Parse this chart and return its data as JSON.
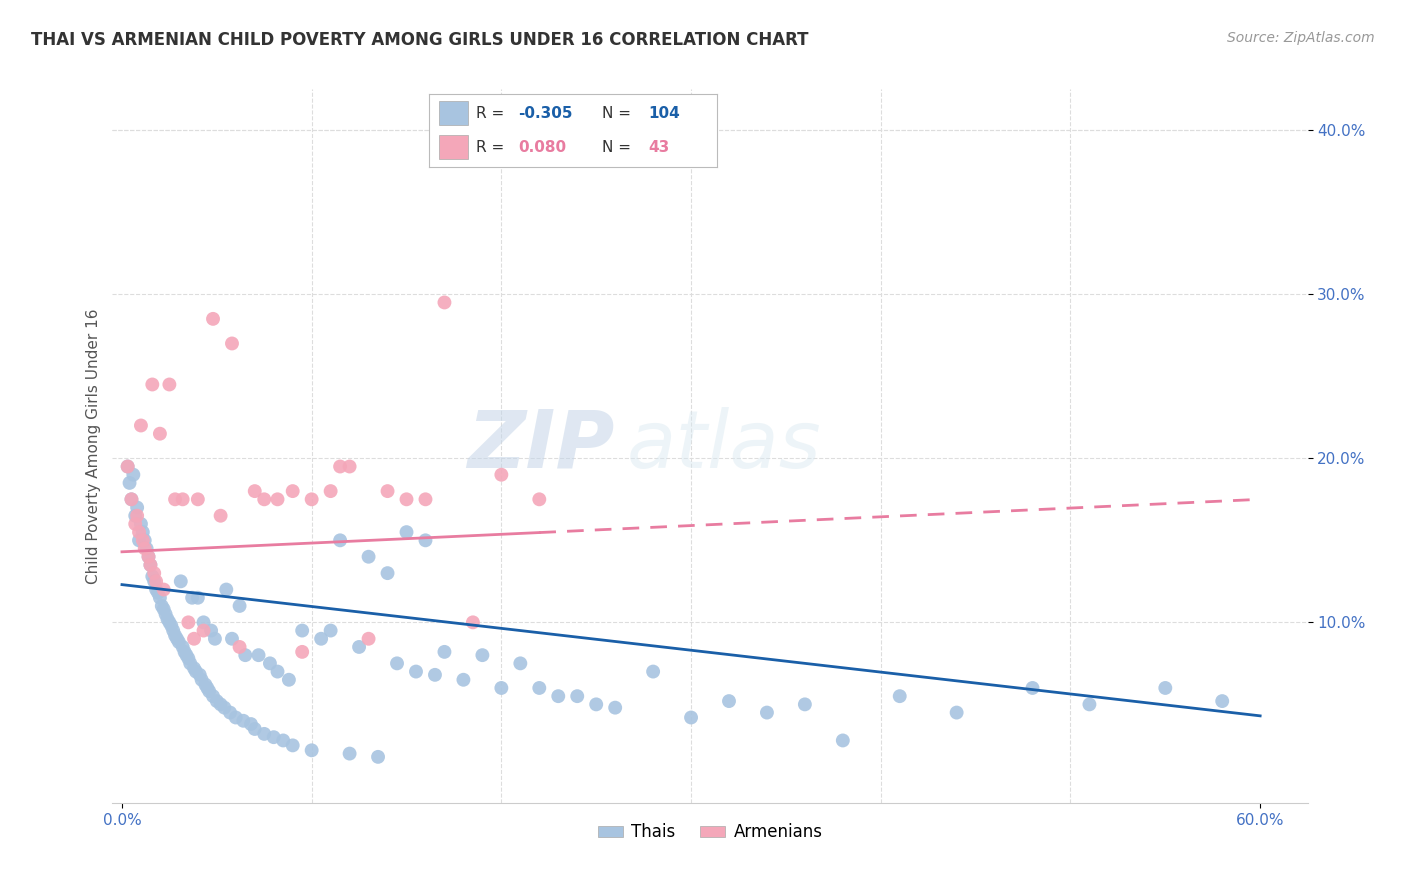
{
  "title": "THAI VS ARMENIAN CHILD POVERTY AMONG GIRLS UNDER 16 CORRELATION CHART",
  "source": "Source: ZipAtlas.com",
  "ylabel": "Child Poverty Among Girls Under 16",
  "xlabel_ticks": [
    "0.0%",
    "60.0%"
  ],
  "xlabel_vals": [
    0.0,
    0.6
  ],
  "ylabel_ticks": [
    "10.0%",
    "20.0%",
    "30.0%",
    "40.0%"
  ],
  "ylabel_vals": [
    0.1,
    0.2,
    0.3,
    0.4
  ],
  "xlim": [
    -0.005,
    0.625
  ],
  "ylim": [
    -0.01,
    0.425
  ],
  "thai_color": "#a8c4e0",
  "armenian_color": "#f4a7b9",
  "thai_line_color": "#1a5fa8",
  "armenian_line_color": "#e87ca0",
  "thai_R": -0.305,
  "thai_N": 104,
  "armenian_R": 0.08,
  "armenian_N": 43,
  "legend_thai_label": "Thais",
  "legend_armenian_label": "Armenians",
  "watermark": "ZIPatlas",
  "background_color": "#ffffff",
  "grid_color": "#dddddd",
  "title_color": "#333333",
  "axis_label_color": "#4472c4",
  "thai_trend_start": 0.123,
  "thai_trend_end": 0.043,
  "armenian_trend_start": 0.143,
  "armenian_trend_end": 0.175,
  "thai_scatter_x": [
    0.003,
    0.004,
    0.005,
    0.006,
    0.007,
    0.008,
    0.009,
    0.01,
    0.011,
    0.012,
    0.013,
    0.014,
    0.015,
    0.016,
    0.017,
    0.018,
    0.019,
    0.02,
    0.021,
    0.022,
    0.023,
    0.024,
    0.025,
    0.026,
    0.027,
    0.028,
    0.029,
    0.03,
    0.031,
    0.032,
    0.033,
    0.034,
    0.035,
    0.036,
    0.037,
    0.038,
    0.039,
    0.04,
    0.041,
    0.042,
    0.043,
    0.044,
    0.045,
    0.046,
    0.047,
    0.048,
    0.049,
    0.05,
    0.052,
    0.054,
    0.055,
    0.057,
    0.058,
    0.06,
    0.062,
    0.064,
    0.065,
    0.068,
    0.07,
    0.072,
    0.075,
    0.078,
    0.08,
    0.082,
    0.085,
    0.088,
    0.09,
    0.095,
    0.1,
    0.105,
    0.11,
    0.115,
    0.12,
    0.125,
    0.13,
    0.135,
    0.14,
    0.145,
    0.15,
    0.155,
    0.16,
    0.165,
    0.17,
    0.18,
    0.19,
    0.2,
    0.21,
    0.22,
    0.23,
    0.24,
    0.25,
    0.26,
    0.28,
    0.3,
    0.32,
    0.34,
    0.36,
    0.38,
    0.41,
    0.44,
    0.48,
    0.51,
    0.55,
    0.58
  ],
  "thai_scatter_y": [
    0.195,
    0.185,
    0.175,
    0.19,
    0.165,
    0.17,
    0.15,
    0.16,
    0.155,
    0.15,
    0.145,
    0.14,
    0.135,
    0.128,
    0.125,
    0.12,
    0.118,
    0.115,
    0.11,
    0.108,
    0.105,
    0.102,
    0.1,
    0.098,
    0.095,
    0.092,
    0.09,
    0.088,
    0.125,
    0.085,
    0.082,
    0.08,
    0.078,
    0.075,
    0.115,
    0.072,
    0.07,
    0.115,
    0.068,
    0.065,
    0.1,
    0.062,
    0.06,
    0.058,
    0.095,
    0.055,
    0.09,
    0.052,
    0.05,
    0.048,
    0.12,
    0.045,
    0.09,
    0.042,
    0.11,
    0.04,
    0.08,
    0.038,
    0.035,
    0.08,
    0.032,
    0.075,
    0.03,
    0.07,
    0.028,
    0.065,
    0.025,
    0.095,
    0.022,
    0.09,
    0.095,
    0.15,
    0.02,
    0.085,
    0.14,
    0.018,
    0.13,
    0.075,
    0.155,
    0.07,
    0.15,
    0.068,
    0.082,
    0.065,
    0.08,
    0.06,
    0.075,
    0.06,
    0.055,
    0.055,
    0.05,
    0.048,
    0.07,
    0.042,
    0.052,
    0.045,
    0.05,
    0.028,
    0.055,
    0.045,
    0.06,
    0.05,
    0.06,
    0.052
  ],
  "armenian_scatter_x": [
    0.003,
    0.005,
    0.007,
    0.008,
    0.009,
    0.01,
    0.011,
    0.012,
    0.014,
    0.015,
    0.016,
    0.017,
    0.018,
    0.02,
    0.022,
    0.025,
    0.028,
    0.032,
    0.035,
    0.038,
    0.04,
    0.043,
    0.048,
    0.052,
    0.058,
    0.062,
    0.07,
    0.075,
    0.082,
    0.09,
    0.095,
    0.1,
    0.11,
    0.115,
    0.12,
    0.13,
    0.14,
    0.15,
    0.16,
    0.17,
    0.185,
    0.2,
    0.22
  ],
  "armenian_scatter_y": [
    0.195,
    0.175,
    0.16,
    0.165,
    0.155,
    0.22,
    0.15,
    0.145,
    0.14,
    0.135,
    0.245,
    0.13,
    0.125,
    0.215,
    0.12,
    0.245,
    0.175,
    0.175,
    0.1,
    0.09,
    0.175,
    0.095,
    0.285,
    0.165,
    0.27,
    0.085,
    0.18,
    0.175,
    0.175,
    0.18,
    0.082,
    0.175,
    0.18,
    0.195,
    0.195,
    0.09,
    0.18,
    0.175,
    0.175,
    0.295,
    0.1,
    0.19,
    0.175
  ]
}
